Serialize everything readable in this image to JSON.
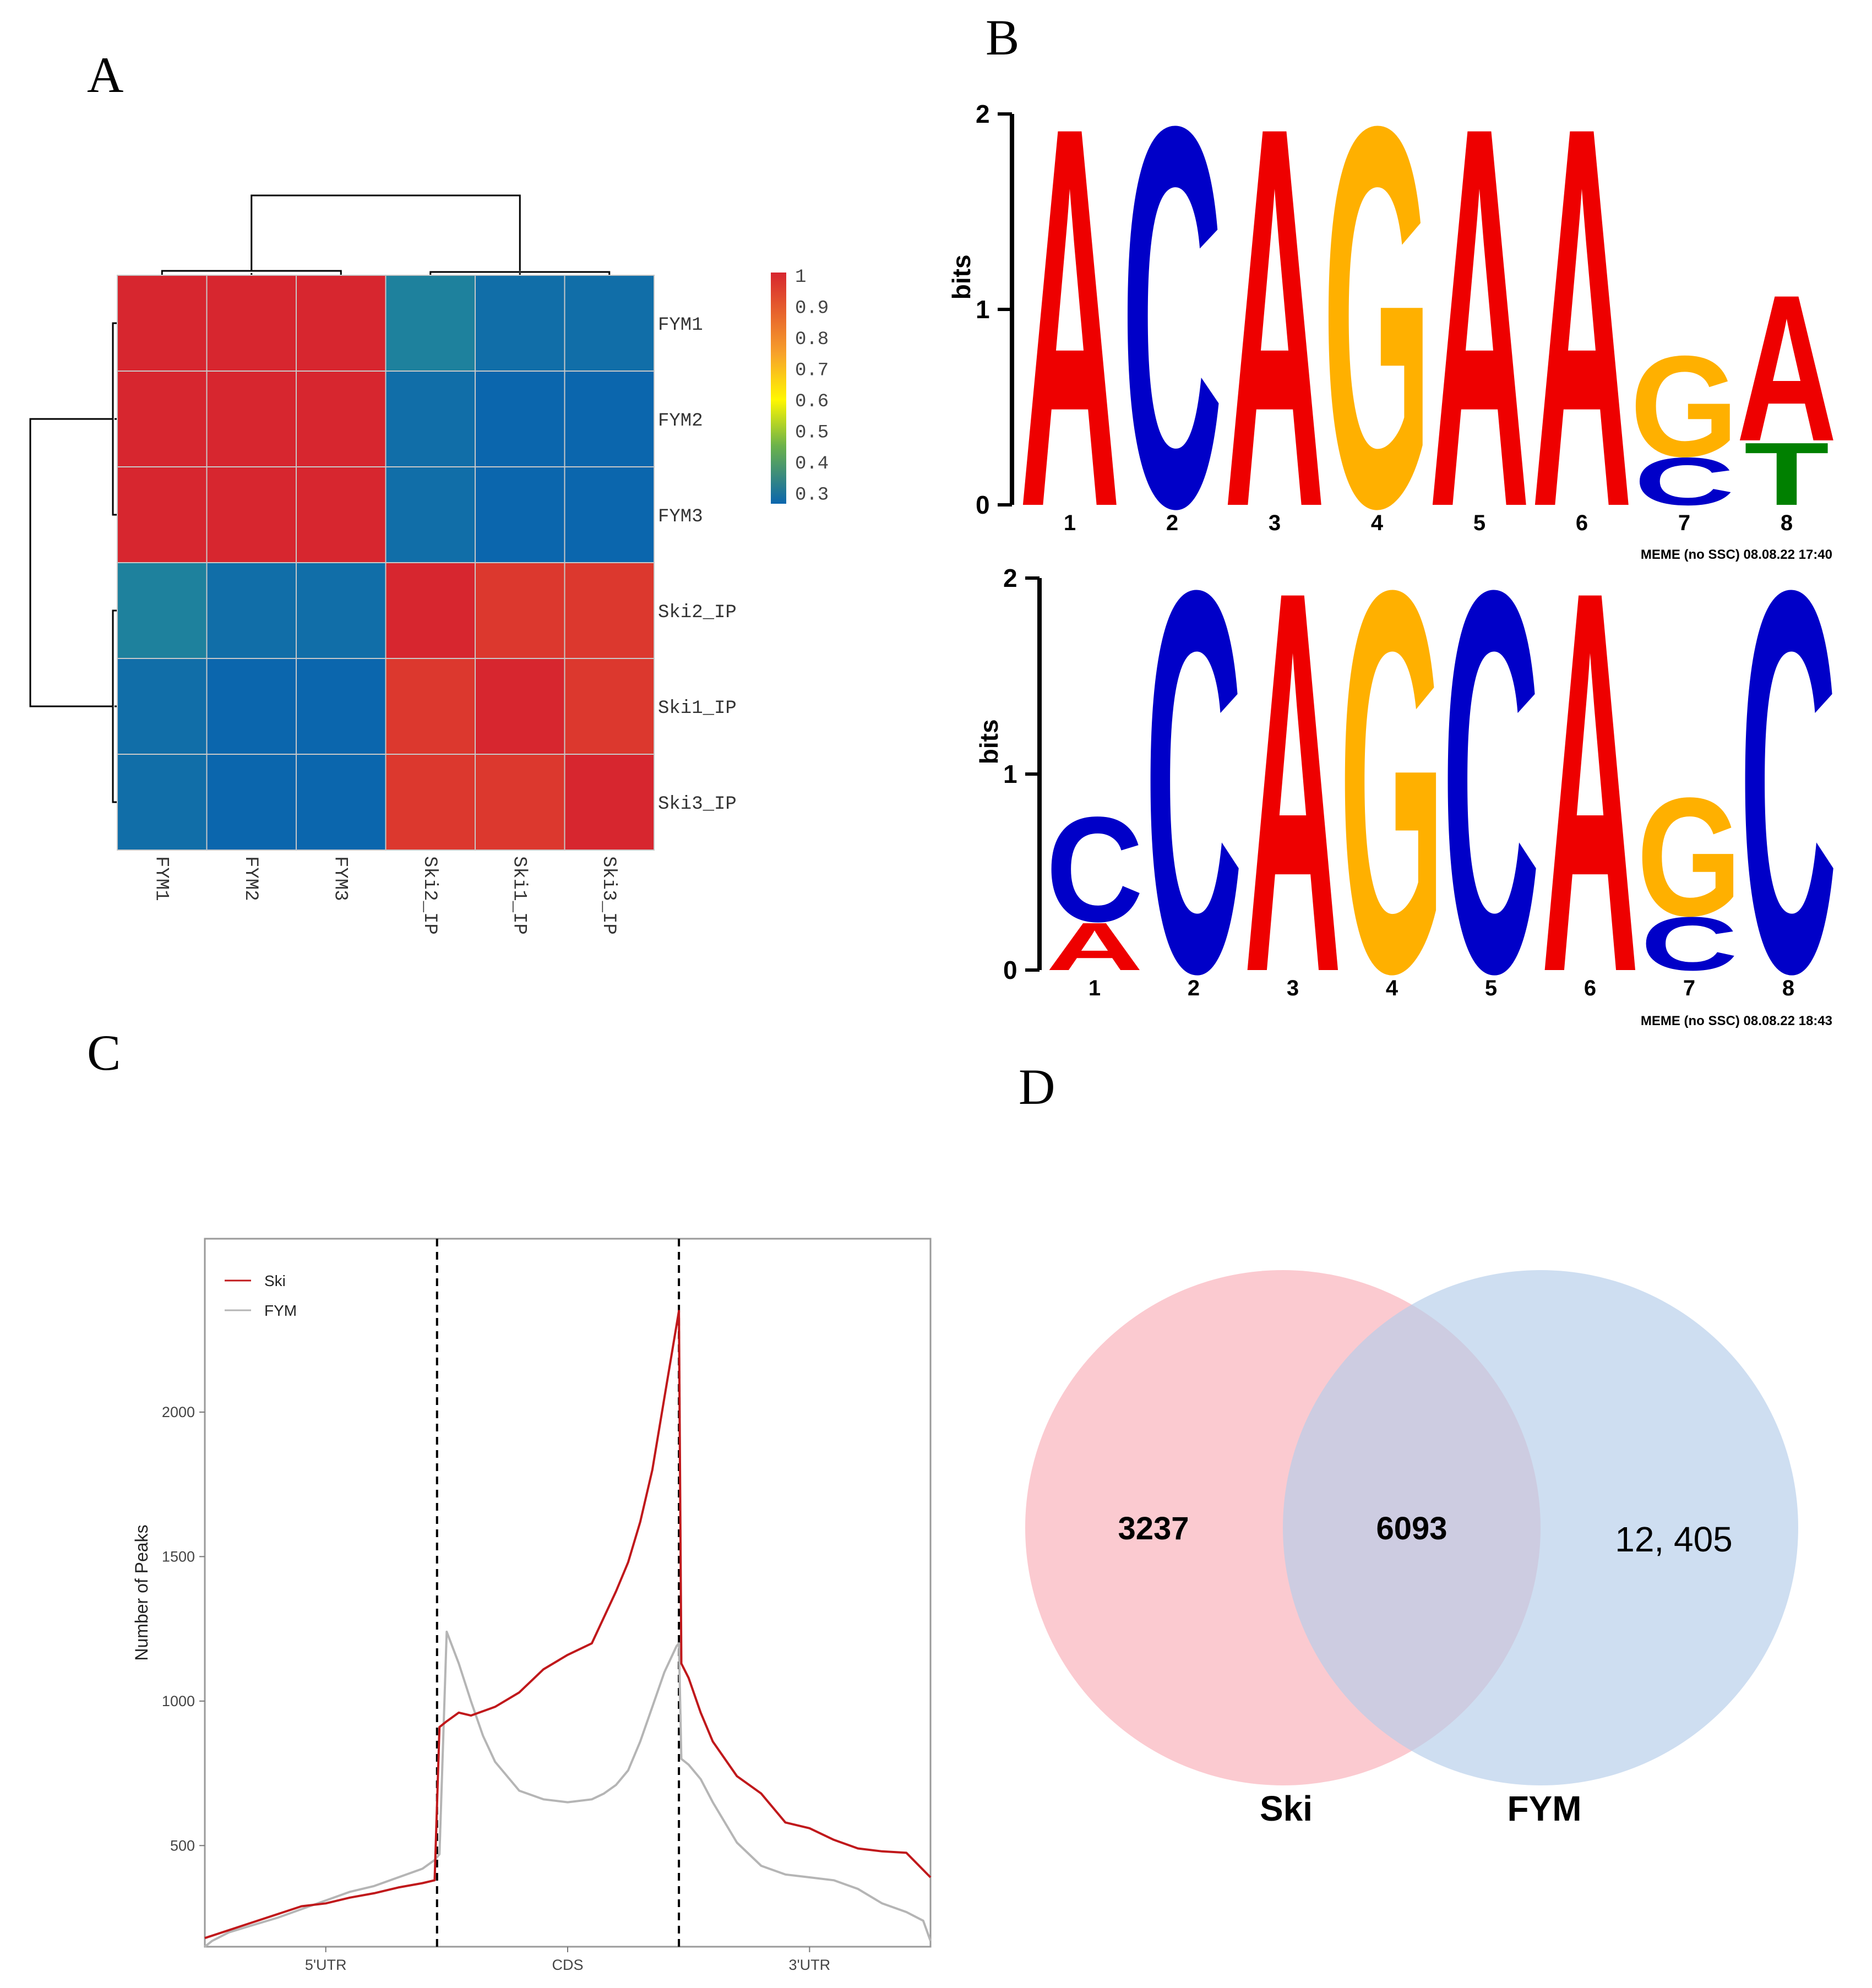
{
  "panels": {
    "a": "A",
    "b": "B",
    "c": "C",
    "d": "D"
  },
  "chart_data": [
    {
      "type": "heatmap",
      "panel": "A",
      "rows": [
        "FYM1",
        "FYM2",
        "FYM3",
        "Ski2_IP",
        "Ski1_IP",
        "Ski3_IP"
      ],
      "columns": [
        "FYM1",
        "FYM2",
        "FYM3",
        "Ski2_IP",
        "Ski1_IP",
        "Ski3_IP"
      ],
      "values": [
        [
          1.0,
          1.0,
          1.0,
          0.4,
          0.33,
          0.33
        ],
        [
          1.0,
          1.0,
          1.0,
          0.33,
          0.3,
          0.3
        ],
        [
          1.0,
          1.0,
          1.0,
          0.33,
          0.3,
          0.3
        ],
        [
          0.4,
          0.33,
          0.33,
          1.0,
          0.98,
          0.98
        ],
        [
          0.33,
          0.3,
          0.3,
          0.98,
          1.0,
          0.98
        ],
        [
          0.33,
          0.3,
          0.3,
          0.98,
          0.98,
          1.0
        ]
      ],
      "legend": {
        "ticks": [
          "1",
          "0.9",
          "0.8",
          "0.7",
          "0.6",
          "0.5",
          "0.4",
          "0.3"
        ]
      },
      "colors": {
        "high": "#d7262f",
        "mid": "#fff700",
        "low": "#0b66ad"
      }
    },
    {
      "type": "sequence-logo",
      "panel": "B",
      "ylabel": "bits",
      "y_ticks": [
        "0",
        "1",
        "2"
      ],
      "positions": [
        "1",
        "2",
        "3",
        "4",
        "5",
        "6",
        "7",
        "8"
      ],
      "letter_colors": {
        "A": "#ee0000",
        "C": "#0000c8",
        "G": "#ffb000",
        "T": "#008000"
      },
      "motifs": [
        {
          "caption": "MEME (no SSC) 08.08.22 17:40",
          "stacks": [
            [
              {
                "letter": "A",
                "bits": 2.0
              }
            ],
            [
              {
                "letter": "C",
                "bits": 2.0
              }
            ],
            [
              {
                "letter": "A",
                "bits": 2.0
              }
            ],
            [
              {
                "letter": "G",
                "bits": 2.0
              }
            ],
            [
              {
                "letter": "A",
                "bits": 2.0
              }
            ],
            [
              {
                "letter": "A",
                "bits": 2.0
              }
            ],
            [
              {
                "letter": "C",
                "bits": 0.25
              },
              {
                "letter": "G",
                "bits": 0.53
              }
            ],
            [
              {
                "letter": "T",
                "bits": 0.33
              },
              {
                "letter": "A",
                "bits": 0.77
              }
            ]
          ]
        },
        {
          "caption": "MEME (no SSC) 08.08.22 18:43",
          "stacks": [
            [
              {
                "letter": "A",
                "bits": 0.25
              },
              {
                "letter": "C",
                "bits": 0.55
              }
            ],
            [
              {
                "letter": "C",
                "bits": 2.0
              }
            ],
            [
              {
                "letter": "A",
                "bits": 2.0
              }
            ],
            [
              {
                "letter": "G",
                "bits": 2.0
              }
            ],
            [
              {
                "letter": "C",
                "bits": 2.0
              }
            ],
            [
              {
                "letter": "A",
                "bits": 2.0
              }
            ],
            [
              {
                "letter": "C",
                "bits": 0.28
              },
              {
                "letter": "G",
                "bits": 0.62
              }
            ],
            [
              {
                "letter": "C",
                "bits": 2.0
              }
            ]
          ]
        }
      ]
    },
    {
      "type": "line",
      "panel": "C",
      "ylabel": "Number of Peaks",
      "xlabel": "",
      "y_ticks": [
        500,
        1000,
        1500,
        2000
      ],
      "ylim": [
        150,
        2600
      ],
      "xlim": [
        0,
        3
      ],
      "regions": [
        "5'UTR",
        "CDS",
        "3'UTR"
      ],
      "boundaries": [
        0.96,
        1.96
      ],
      "legend_position": "top-left",
      "series": [
        {
          "name": "Ski",
          "color": "#c0181b",
          "x": [
            0,
            0.2,
            0.4,
            0.5,
            0.6,
            0.7,
            0.8,
            0.9,
            0.95,
            0.97,
            1.0,
            1.05,
            1.1,
            1.2,
            1.3,
            1.4,
            1.5,
            1.6,
            1.7,
            1.75,
            1.8,
            1.85,
            1.9,
            1.94,
            1.96,
            1.97,
            2.0,
            2.05,
            2.1,
            2.2,
            2.3,
            2.4,
            2.5,
            2.6,
            2.7,
            2.8,
            2.9,
            3.0
          ],
          "y": [
            180,
            235,
            290,
            300,
            320,
            335,
            355,
            370,
            380,
            910,
            930,
            960,
            950,
            980,
            1030,
            1110,
            1160,
            1200,
            1380,
            1480,
            1620,
            1800,
            2050,
            2250,
            2350,
            1130,
            1080,
            960,
            860,
            740,
            680,
            580,
            560,
            520,
            490,
            480,
            475,
            390
          ]
        },
        {
          "name": "FYM",
          "color": "#b5b5b5",
          "x": [
            0,
            0.03,
            0.1,
            0.2,
            0.3,
            0.4,
            0.5,
            0.6,
            0.7,
            0.8,
            0.9,
            0.95,
            0.97,
            1.0,
            1.05,
            1.1,
            1.15,
            1.2,
            1.3,
            1.4,
            1.5,
            1.6,
            1.65,
            1.7,
            1.75,
            1.8,
            1.85,
            1.9,
            1.95,
            1.96,
            1.97,
            2.0,
            2.05,
            2.1,
            2.2,
            2.3,
            2.4,
            2.5,
            2.6,
            2.7,
            2.8,
            2.9,
            2.97,
            3.0
          ],
          "y": [
            150,
            170,
            200,
            225,
            250,
            280,
            310,
            340,
            360,
            390,
            420,
            450,
            470,
            1240,
            1130,
            1000,
            880,
            790,
            690,
            660,
            650,
            660,
            680,
            710,
            760,
            860,
            980,
            1100,
            1190,
            1200,
            800,
            780,
            730,
            650,
            510,
            430,
            400,
            390,
            380,
            350,
            300,
            270,
            240,
            170
          ]
        }
      ]
    },
    {
      "type": "venn",
      "panel": "D",
      "sets": [
        {
          "name": "Ski",
          "color": "#f9a7b0"
        },
        {
          "name": "FYM",
          "color": "#b4cde9"
        }
      ],
      "regions": {
        "ski_only": "3237",
        "both": "6093",
        "fym_only": "12, 405"
      }
    }
  ]
}
